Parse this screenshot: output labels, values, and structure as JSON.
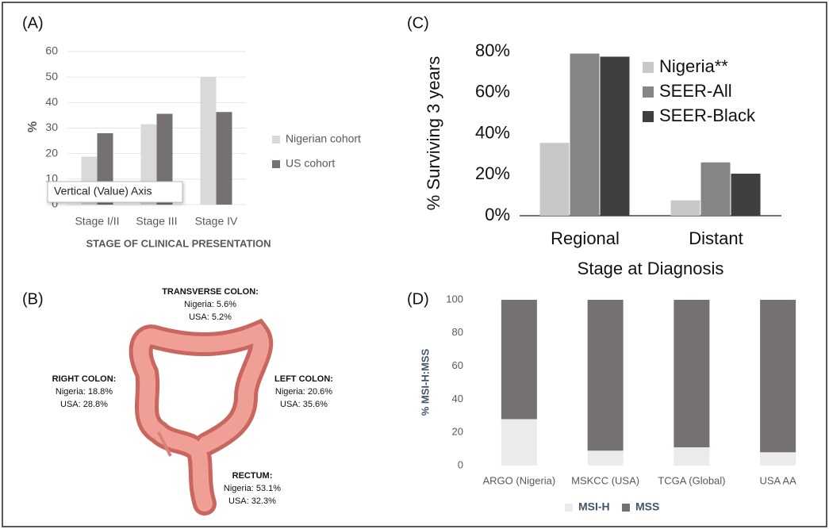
{
  "chart_data": [
    {
      "panel_label": "(A)",
      "type": "bar",
      "categories": [
        "Stage I/II",
        "Stage III",
        "Stage IV"
      ],
      "series": [
        {
          "name": "Nigerian cohort",
          "color": "#d9d9d9",
          "values": [
            18.8,
            31.5,
            50
          ]
        },
        {
          "name": "US cohort",
          "color": "#767171",
          "values": [
            28,
            35.6,
            36.3
          ]
        }
      ],
      "ylim": [
        0,
        60
      ],
      "yticks": [
        0,
        10,
        20,
        30,
        40,
        50,
        60
      ],
      "grid": true,
      "y_label": "%",
      "x_label": "STAGE OF CLINICAL PRESENTATION",
      "legend": "right",
      "tooltip": "Vertical (Value) Axis"
    },
    {
      "panel_label": "(C)",
      "type": "bar",
      "categories": [
        "Regional",
        "Distant"
      ],
      "series": [
        {
          "name": "Nigeria**",
          "color": "#c8c8c8",
          "values": [
            35.5,
            7.5
          ]
        },
        {
          "name": "SEER-All",
          "color": "#858585",
          "values": [
            79,
            26
          ]
        },
        {
          "name": "SEER-Black",
          "color": "#3f3f3f",
          "values": [
            77.5,
            20.5
          ]
        }
      ],
      "ylim": [
        0,
        80
      ],
      "yticks": [
        {
          "value": 0,
          "label": "0%"
        },
        {
          "value": 20,
          "label": "20%"
        },
        {
          "value": 40,
          "label": "40%"
        },
        {
          "value": 60,
          "label": "60%"
        },
        {
          "value": 80,
          "label": "80%"
        }
      ],
      "grid": false,
      "y_label": "% Surviving 3 years",
      "x_label": "Stage at Diagnosis",
      "legend": "upper right"
    },
    {
      "panel_label": "(D)",
      "type": "stacked_bar",
      "categories": [
        "ARGO (Nigeria)",
        "MSKCC (USA)",
        "TCGA (Global)",
        "USA AA"
      ],
      "series": [
        {
          "name": "MSI-H",
          "color": "#ebebeb",
          "values": [
            28,
            9,
            11,
            8
          ]
        },
        {
          "name": "MSS",
          "color": "#767171",
          "values": [
            72,
            91,
            89,
            92
          ]
        }
      ],
      "ylim": [
        0,
        100
      ],
      "yticks": [
        0,
        20,
        40,
        60,
        80,
        100
      ],
      "grid": false,
      "y_label": "% MSI-H:MSS",
      "legend": "bottom"
    }
  ],
  "panel_b": {
    "panel_label": "(B)",
    "regions": [
      {
        "name": "TRANSVERSE COLON:",
        "nigeria": "Nigeria: 5.6%",
        "usa": "USA: 5.2%"
      },
      {
        "name": "RIGHT COLON:",
        "nigeria": "Nigeria: 18.8%",
        "usa": "USA: 28.8%"
      },
      {
        "name": "LEFT COLON:",
        "nigeria": "Nigeria: 20.6%",
        "usa": "USA: 35.6%"
      },
      {
        "name": "RECTUM:",
        "nigeria": "Nigeria: 53.1%",
        "usa": "USA: 32.3%"
      }
    ]
  }
}
